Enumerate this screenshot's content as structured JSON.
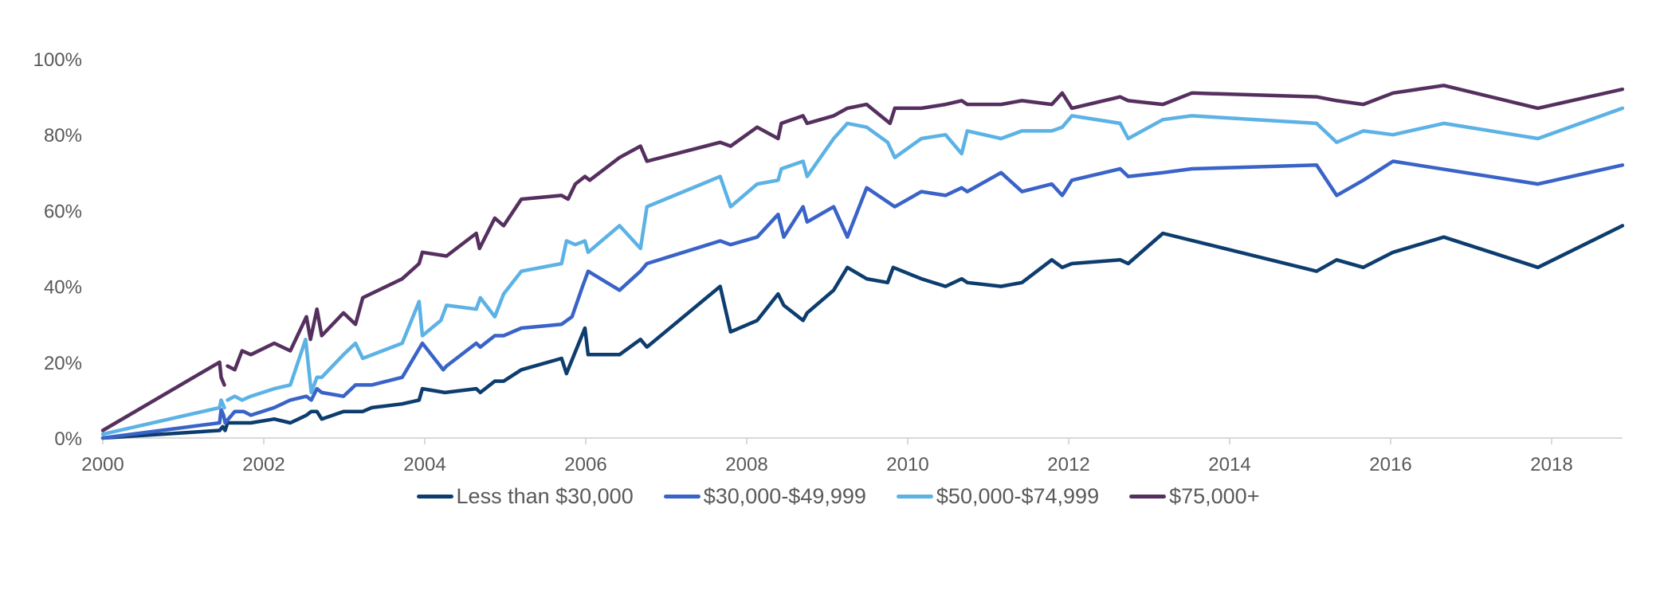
{
  "chart_data": {
    "type": "line",
    "title": "",
    "xlabel": "",
    "ylabel": "",
    "xlim": [
      2000,
      2018.88
    ],
    "ylim": [
      0,
      100
    ],
    "x_ticks": [
      "2000",
      "2002",
      "2004",
      "2006",
      "2008",
      "2010",
      "2012",
      "2014",
      "2016",
      "2018"
    ],
    "y_ticks": [
      "0%",
      "20%",
      "40%",
      "60%",
      "80%",
      "100%"
    ],
    "grid": false,
    "legend_position": "bottom",
    "series": [
      {
        "name": "Less than $30,000",
        "color": "#0d3d6e",
        "points": [
          [
            2000,
            0
          ],
          [
            2001.45,
            2
          ],
          [
            2001.49,
            3
          ],
          [
            2001.52,
            2
          ],
          [
            2001.55,
            4
          ],
          [
            2001.84,
            4
          ],
          [
            2002.13,
            5
          ],
          [
            2002.33,
            4
          ],
          [
            2002.53,
            6
          ],
          [
            2002.59,
            7
          ],
          [
            2002.66,
            7
          ],
          [
            2002.72,
            5
          ],
          [
            2002.99,
            7
          ],
          [
            2003.23,
            7
          ],
          [
            2003.34,
            8
          ],
          [
            2003.72,
            9
          ],
          [
            2003.93,
            10
          ],
          [
            2003.97,
            13
          ],
          [
            2004.25,
            12
          ],
          [
            2004.64,
            13
          ],
          [
            2004.69,
            12
          ],
          [
            2004.87,
            15
          ],
          [
            2004.98,
            15
          ],
          [
            2005.2,
            18
          ],
          [
            2005.7,
            21
          ],
          [
            2005.76,
            17
          ],
          [
            2005.99,
            29
          ],
          [
            2006.03,
            22
          ],
          [
            2006.42,
            22
          ],
          [
            2006.68,
            26
          ],
          [
            2006.76,
            24
          ],
          [
            2007.67,
            40
          ],
          [
            2007.8,
            28
          ],
          [
            2008.13,
            31
          ],
          [
            2008.39,
            38
          ],
          [
            2008.46,
            35
          ],
          [
            2008.7,
            31
          ],
          [
            2008.75,
            33
          ],
          [
            2009.08,
            39
          ],
          [
            2009.25,
            45
          ],
          [
            2009.49,
            42
          ],
          [
            2009.75,
            41
          ],
          [
            2009.82,
            45
          ],
          [
            2010.17,
            42
          ],
          [
            2010.47,
            40
          ],
          [
            2010.67,
            42
          ],
          [
            2010.74,
            41
          ],
          [
            2011.16,
            40
          ],
          [
            2011.42,
            41
          ],
          [
            2011.79,
            47
          ],
          [
            2011.92,
            45
          ],
          [
            2012.04,
            46
          ],
          [
            2012.64,
            47
          ],
          [
            2012.74,
            46
          ],
          [
            2013.17,
            54
          ],
          [
            2015.08,
            44
          ],
          [
            2015.33,
            47
          ],
          [
            2015.66,
            45
          ],
          [
            2016.03,
            49
          ],
          [
            2016.66,
            53
          ],
          [
            2017.83,
            45
          ],
          [
            2018.88,
            56
          ]
        ]
      },
      {
        "name": "$30,000-$49,999",
        "color": "#3a63c8",
        "points": [
          [
            2000,
            0
          ],
          [
            2001.45,
            4
          ],
          [
            2001.47,
            7.5
          ],
          [
            2001.5,
            6
          ],
          [
            2001.52,
            4
          ],
          [
            2001.64,
            7
          ],
          [
            2001.75,
            7
          ],
          [
            2001.84,
            6
          ],
          [
            2002.13,
            8
          ],
          [
            2002.33,
            10
          ],
          [
            2002.53,
            11
          ],
          [
            2002.59,
            10
          ],
          [
            2002.66,
            13
          ],
          [
            2002.72,
            12
          ],
          [
            2002.99,
            11
          ],
          [
            2003.14,
            14
          ],
          [
            2003.34,
            14
          ],
          [
            2003.72,
            16
          ],
          [
            2003.97,
            25
          ],
          [
            2004.23,
            18
          ],
          [
            2004.27,
            19
          ],
          [
            2004.64,
            25
          ],
          [
            2004.69,
            24
          ],
          [
            2004.87,
            27
          ],
          [
            2004.98,
            27
          ],
          [
            2005.2,
            29
          ],
          [
            2005.7,
            30
          ],
          [
            2005.83,
            32
          ],
          [
            2005.96,
            40
          ],
          [
            2006.03,
            44
          ],
          [
            2006.42,
            39
          ],
          [
            2006.68,
            44
          ],
          [
            2006.76,
            46
          ],
          [
            2007.67,
            52
          ],
          [
            2007.8,
            51
          ],
          [
            2008.13,
            53
          ],
          [
            2008.39,
            59
          ],
          [
            2008.46,
            53
          ],
          [
            2008.7,
            61
          ],
          [
            2008.75,
            57
          ],
          [
            2009.08,
            61
          ],
          [
            2009.25,
            53
          ],
          [
            2009.49,
            66
          ],
          [
            2009.84,
            61
          ],
          [
            2010.17,
            65
          ],
          [
            2010.47,
            64
          ],
          [
            2010.67,
            66
          ],
          [
            2010.74,
            65
          ],
          [
            2011.16,
            70
          ],
          [
            2011.42,
            65
          ],
          [
            2011.79,
            67
          ],
          [
            2011.92,
            64
          ],
          [
            2012.04,
            68
          ],
          [
            2012.64,
            71
          ],
          [
            2012.74,
            69
          ],
          [
            2013.17,
            70
          ],
          [
            2013.53,
            71
          ],
          [
            2015.08,
            72
          ],
          [
            2015.33,
            64
          ],
          [
            2015.66,
            68
          ],
          [
            2016.03,
            73
          ],
          [
            2017.83,
            67
          ],
          [
            2018.88,
            72
          ]
        ]
      },
      {
        "name": "$50,000-$74,999",
        "color": "#5cb2e5",
        "points": [
          [
            2000,
            1
          ],
          [
            2001.45,
            8
          ],
          [
            2001.47,
            10
          ],
          [
            2001.51,
            8
          ],
          null,
          [
            2001.55,
            10
          ],
          [
            2001.64,
            11
          ],
          [
            2001.73,
            10
          ],
          [
            2001.84,
            11
          ],
          [
            2002.13,
            13
          ],
          [
            2002.33,
            14
          ],
          [
            2002.52,
            26
          ],
          [
            2002.59,
            12
          ],
          [
            2002.66,
            16
          ],
          [
            2002.72,
            16
          ],
          [
            2002.99,
            22
          ],
          [
            2003.14,
            25
          ],
          [
            2003.23,
            21
          ],
          [
            2003.72,
            25
          ],
          [
            2003.93,
            36
          ],
          [
            2003.97,
            27
          ],
          [
            2004.2,
            31
          ],
          [
            2004.27,
            35
          ],
          [
            2004.64,
            34
          ],
          [
            2004.69,
            37
          ],
          [
            2004.87,
            32
          ],
          [
            2004.98,
            38
          ],
          [
            2005.2,
            44
          ],
          [
            2005.7,
            46
          ],
          [
            2005.76,
            52
          ],
          [
            2005.87,
            51
          ],
          [
            2005.99,
            52
          ],
          [
            2006.03,
            49
          ],
          [
            2006.42,
            56
          ],
          [
            2006.68,
            50
          ],
          [
            2006.76,
            61
          ],
          [
            2007.67,
            69
          ],
          [
            2007.8,
            61
          ],
          [
            2008.13,
            67
          ],
          [
            2008.39,
            68
          ],
          [
            2008.43,
            71
          ],
          [
            2008.7,
            73
          ],
          [
            2008.75,
            69
          ],
          [
            2009.08,
            79
          ],
          [
            2009.25,
            83
          ],
          [
            2009.49,
            82
          ],
          [
            2009.75,
            78
          ],
          [
            2009.84,
            74
          ],
          [
            2010.17,
            79
          ],
          [
            2010.47,
            80
          ],
          [
            2010.67,
            75
          ],
          [
            2010.74,
            81
          ],
          [
            2011.16,
            79
          ],
          [
            2011.42,
            81
          ],
          [
            2011.79,
            81
          ],
          [
            2011.92,
            82
          ],
          [
            2012.04,
            85
          ],
          [
            2012.64,
            83
          ],
          [
            2012.74,
            79
          ],
          [
            2013.17,
            84
          ],
          [
            2013.53,
            85
          ],
          [
            2015.08,
            83
          ],
          [
            2015.33,
            78
          ],
          [
            2015.66,
            81
          ],
          [
            2016.03,
            80
          ],
          [
            2016.66,
            83
          ],
          [
            2017.83,
            79
          ],
          [
            2018.88,
            87
          ]
        ]
      },
      {
        "name": "$75,000+",
        "color": "#55305f",
        "points": [
          [
            2000,
            2
          ],
          [
            2001.45,
            20
          ],
          [
            2001.47,
            16
          ],
          [
            2001.51,
            14
          ],
          null,
          [
            2001.55,
            19
          ],
          [
            2001.64,
            18
          ],
          [
            2001.73,
            23
          ],
          [
            2001.84,
            22
          ],
          [
            2002.13,
            25
          ],
          [
            2002.33,
            23
          ],
          [
            2002.53,
            32
          ],
          [
            2002.58,
            26
          ],
          [
            2002.66,
            34
          ],
          [
            2002.72,
            27
          ],
          [
            2002.99,
            33
          ],
          [
            2003.14,
            30
          ],
          [
            2003.23,
            37
          ],
          [
            2003.72,
            42
          ],
          [
            2003.93,
            46
          ],
          [
            2003.97,
            49
          ],
          [
            2004.27,
            48
          ],
          [
            2004.64,
            54
          ],
          [
            2004.68,
            50
          ],
          [
            2004.87,
            58
          ],
          [
            2004.98,
            56
          ],
          [
            2005.2,
            63
          ],
          [
            2005.7,
            64
          ],
          [
            2005.78,
            63
          ],
          [
            2005.87,
            67
          ],
          [
            2005.99,
            69
          ],
          [
            2006.05,
            68
          ],
          [
            2006.42,
            74
          ],
          [
            2006.68,
            77
          ],
          [
            2006.76,
            73
          ],
          [
            2007.67,
            78
          ],
          [
            2007.8,
            77
          ],
          [
            2008.13,
            82
          ],
          [
            2008.39,
            79
          ],
          [
            2008.43,
            83
          ],
          [
            2008.7,
            85
          ],
          [
            2008.75,
            83
          ],
          [
            2009.08,
            85
          ],
          [
            2009.25,
            87
          ],
          [
            2009.49,
            88
          ],
          [
            2009.78,
            83
          ],
          [
            2009.84,
            87
          ],
          [
            2010.17,
            87
          ],
          [
            2010.47,
            88
          ],
          [
            2010.67,
            89
          ],
          [
            2010.74,
            88
          ],
          [
            2011.16,
            88
          ],
          [
            2011.42,
            89
          ],
          [
            2011.79,
            88
          ],
          [
            2011.92,
            91
          ],
          [
            2012.04,
            87
          ],
          [
            2012.64,
            90
          ],
          [
            2012.74,
            89
          ],
          [
            2013.17,
            88
          ],
          [
            2013.53,
            91
          ],
          [
            2015.08,
            90
          ],
          [
            2015.33,
            89
          ],
          [
            2015.66,
            88
          ],
          [
            2016.03,
            91
          ],
          [
            2016.66,
            93
          ],
          [
            2017.83,
            87
          ],
          [
            2018.88,
            92
          ]
        ]
      }
    ]
  },
  "colors": {
    "axis": "#d9d9d9",
    "text": "#595959"
  }
}
